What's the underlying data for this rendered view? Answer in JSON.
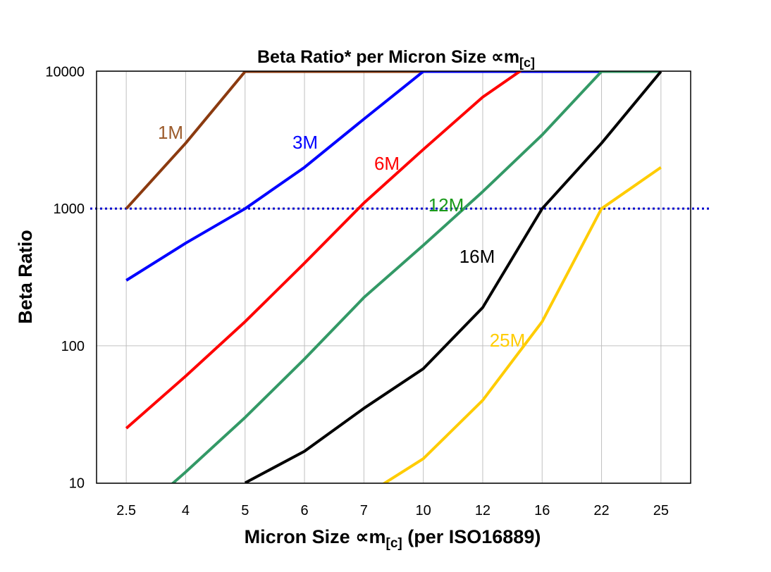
{
  "chart_data": {
    "type": "line",
    "title": "Beta Ratio* per Micron Size ∝m",
    "title_subscript": "[c]",
    "xlabel": "Micron Size ∝m",
    "xlabel_subscript": "[c]",
    "xlabel_suffix": " (per ISO16889)",
    "ylabel": "Beta Ratio",
    "yscale": "log",
    "ylim": [
      10,
      10000
    ],
    "yticks": [
      "10",
      "100",
      "1000",
      "10000"
    ],
    "grid": true,
    "legend": "none (inline series labels)",
    "categories": [
      "2.5",
      "4",
      "5",
      "6",
      "7",
      "10",
      "12",
      "16",
      "22",
      "25"
    ],
    "reference_line": {
      "y": 1000,
      "style": "dotted",
      "color": "#0000CC"
    },
    "series": [
      {
        "name": "1M",
        "color": "#8B3A0F",
        "label_color": "#9C5B2B",
        "values": [
          1000,
          3000,
          10000,
          10000,
          10000,
          10000,
          10000,
          10000,
          10000,
          10000
        ]
      },
      {
        "name": "3M",
        "color": "#0000FF",
        "label_color": "#0000FF",
        "values": [
          300,
          560,
          1000,
          2000,
          4500,
          10000,
          10000,
          10000,
          10000,
          10000
        ]
      },
      {
        "name": "6M",
        "color": "#FF0000",
        "label_color": "#FF0000",
        "values": [
          25,
          60,
          150,
          400,
          1100,
          2700,
          6500,
          13000,
          null,
          null
        ]
      },
      {
        "name": "12M",
        "color": "#339966",
        "label_color": "#1A9A1A",
        "values": [
          5,
          12,
          30,
          80,
          225,
          540,
          1330,
          3450,
          10000,
          10000
        ]
      },
      {
        "name": "16M",
        "color": "#000000",
        "label_color": "#000000",
        "values": [
          null,
          null,
          10,
          17,
          35,
          68,
          190,
          1000,
          3000,
          10000
        ]
      },
      {
        "name": "25M",
        "color": "#FFCC00",
        "label_color": "#FFCC00",
        "values": [
          null,
          null,
          null,
          null,
          8,
          15,
          40,
          150,
          1000,
          2000
        ]
      }
    ]
  }
}
